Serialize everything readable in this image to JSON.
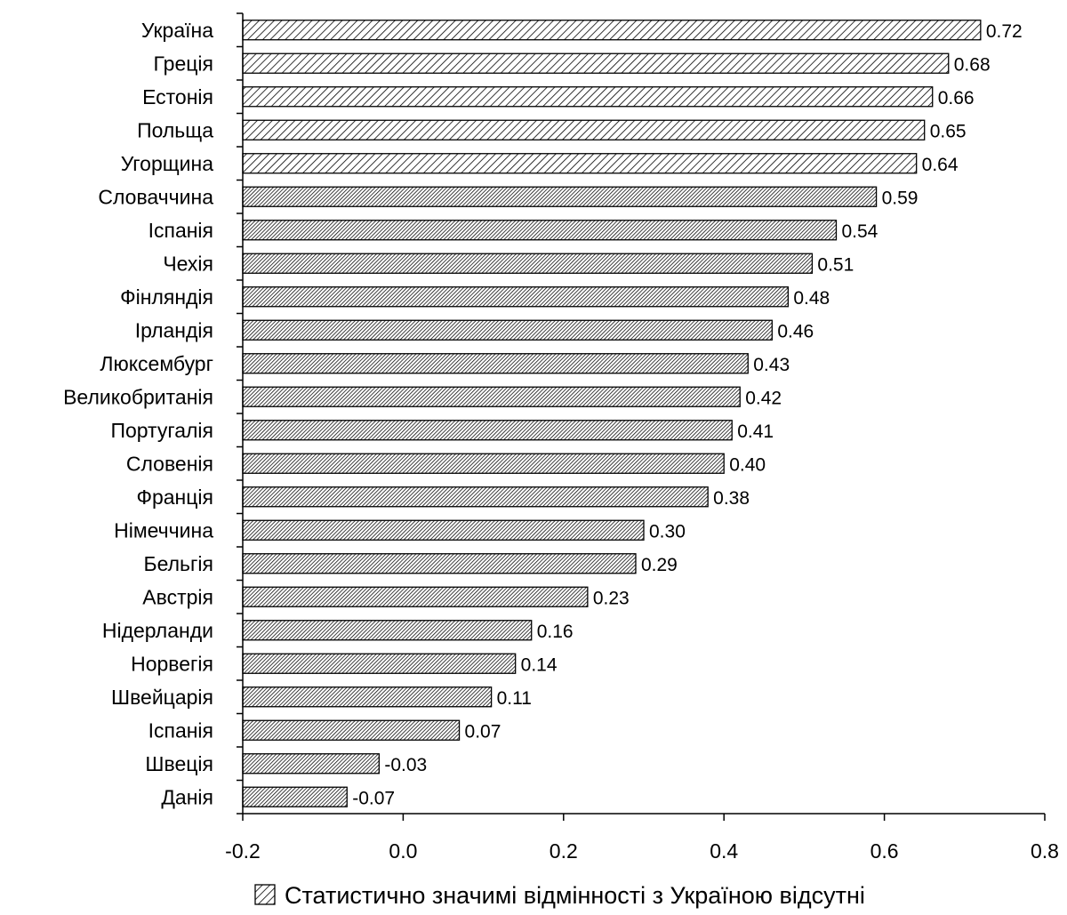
{
  "chart_data": {
    "type": "bar",
    "orientation": "horizontal",
    "categories": [
      "Україна",
      "Греція",
      "Естонія",
      "Польща",
      "Угорщина",
      "Словаччина",
      "Іспанія",
      "Чехія",
      "Фінляндія",
      "Ірландія",
      "Люксембург",
      "Великобританія",
      "Португалія",
      "Словенія",
      "Франція",
      "Німеччина",
      "Бельгія",
      "Австрія",
      "Нідерланди",
      "Норвегія",
      "Швейцарія",
      "Іспанія",
      "Швеція",
      "Данія"
    ],
    "values": [
      0.72,
      0.68,
      0.66,
      0.65,
      0.64,
      0.59,
      0.54,
      0.51,
      0.48,
      0.46,
      0.43,
      0.42,
      0.41,
      0.4,
      0.38,
      0.3,
      0.29,
      0.23,
      0.16,
      0.14,
      0.11,
      0.07,
      -0.03,
      -0.07
    ],
    "value_labels": [
      "0.72",
      "0.68",
      "0.66",
      "0.65",
      "0.64",
      "0.59",
      "0.54",
      "0.51",
      "0.48",
      "0.46",
      "0.43",
      "0.42",
      "0.41",
      "0.40",
      "0.38",
      "0.30",
      "0.29",
      "0.23",
      "0.16",
      "0.14",
      "0.11",
      "0.07",
      "-0.03",
      "-0.07"
    ],
    "no_significant_difference": [
      true,
      true,
      true,
      true,
      true,
      false,
      false,
      false,
      false,
      false,
      false,
      false,
      false,
      false,
      false,
      false,
      false,
      false,
      false,
      false,
      false,
      false,
      false,
      false
    ],
    "xlim": [
      -0.2,
      0.8
    ],
    "xticks": [
      -0.2,
      0.0,
      0.2,
      0.4,
      0.6,
      0.8
    ],
    "xtick_labels": [
      "-0.2",
      "0.0",
      "0.2",
      "0.4",
      "0.6",
      "0.8"
    ],
    "grid": false,
    "legend_position": "bottom",
    "legend": {
      "label": "Статистично значимі відмінності з Україною відсутні",
      "pattern": "diagonal-hatch"
    },
    "colors": {
      "hatch_fill": "#ffffff",
      "hatch_line": "#000000",
      "dense_fill": "#8a8a8a",
      "axis": "#000000"
    }
  }
}
